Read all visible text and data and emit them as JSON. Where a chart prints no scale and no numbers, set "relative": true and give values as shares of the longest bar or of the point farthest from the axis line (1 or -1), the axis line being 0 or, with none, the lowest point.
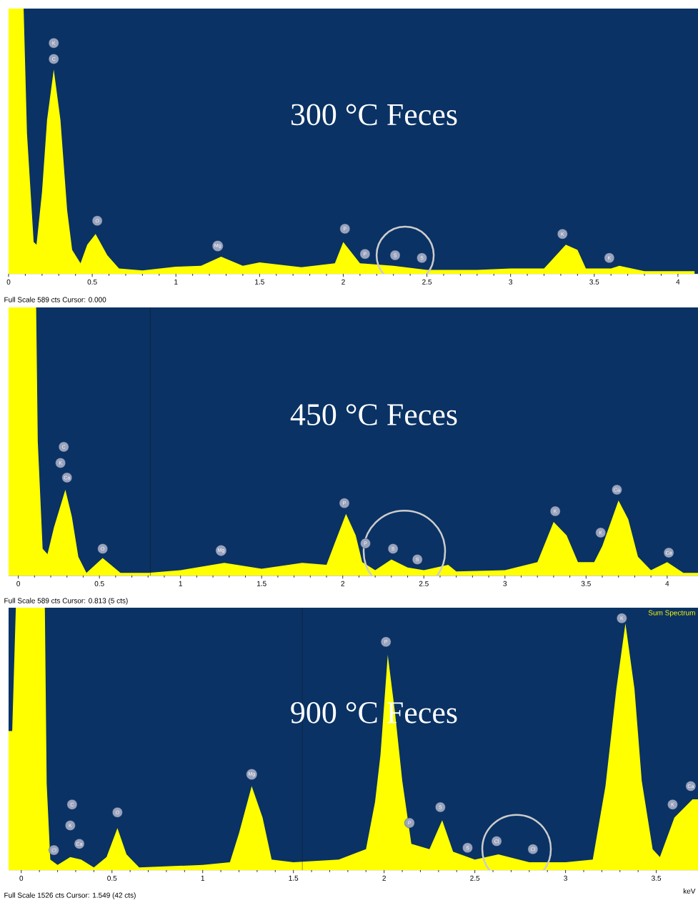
{
  "chart_data": [
    {
      "type": "area",
      "title": "300 °C Feces",
      "relative": true,
      "xlim": [
        0,
        4.12
      ],
      "xticks": [
        0,
        0.5,
        1,
        1.5,
        2,
        2.5,
        3,
        3.5,
        4
      ],
      "x": [
        0,
        0.09,
        0.11,
        0.15,
        0.167,
        0.2,
        0.23,
        0.27,
        0.31,
        0.35,
        0.38,
        0.43,
        0.47,
        0.52,
        0.59,
        0.66,
        0.8,
        1.0,
        1.15,
        1.27,
        1.4,
        1.5,
        1.75,
        1.95,
        2.0,
        2.1,
        2.3,
        2.5,
        2.8,
        3.0,
        3.2,
        3.33,
        3.4,
        3.45,
        3.6,
        3.65,
        3.8,
        4.1
      ],
      "series": [
        {
          "color": "#ffff00",
          "values": [
            1,
            1,
            0.53,
            0.12,
            0.11,
            0.31,
            0.58,
            0.77,
            0.58,
            0.24,
            0.09,
            0.04,
            0.11,
            0.15,
            0.07,
            0.02,
            0.013,
            0.027,
            0.03,
            0.065,
            0.03,
            0.043,
            0.025,
            0.04,
            0.12,
            0.04,
            0.03,
            0.015,
            0.015,
            0.02,
            0.02,
            0.11,
            0.09,
            0.02,
            0.02,
            0.03,
            0.01,
            0.01
          ]
        }
      ],
      "annotations": [
        {
          "text": "K",
          "x": 0.27,
          "y": 0.87
        },
        {
          "text": "C",
          "x": 0.27,
          "y": 0.81
        },
        {
          "text": "O",
          "x": 0.53,
          "y": 0.2
        },
        {
          "text": "Mg",
          "x": 1.25,
          "y": 0.105
        },
        {
          "text": "P",
          "x": 2.01,
          "y": 0.17
        },
        {
          "text": "P",
          "x": 2.13,
          "y": 0.075
        },
        {
          "text": "S",
          "x": 2.31,
          "y": 0.07
        },
        {
          "text": "S",
          "x": 2.47,
          "y": 0.06
        },
        {
          "text": "K",
          "x": 3.31,
          "y": 0.15
        },
        {
          "text": "K",
          "x": 3.59,
          "y": 0.06
        },
        "Full Scale 589 cts Cursor: 0.000"
      ]
    },
    {
      "type": "area",
      "title": "450 °C Feces",
      "relative": true,
      "xlim": [
        -0.06,
        4.19
      ],
      "xticks": [
        0,
        0.5,
        1,
        1.5,
        2,
        2.5,
        3,
        3.5,
        4
      ],
      "x": [
        -0.06,
        0.11,
        0.12,
        0.15,
        0.18,
        0.22,
        0.29,
        0.33,
        0.37,
        0.42,
        0.52,
        0.63,
        0.8,
        1.0,
        1.27,
        1.5,
        1.75,
        1.9,
        1.95,
        2.02,
        2.08,
        2.12,
        2.2,
        2.3,
        2.4,
        2.5,
        2.65,
        2.7,
        3.0,
        3.2,
        3.3,
        3.38,
        3.45,
        3.55,
        3.6,
        3.7,
        3.76,
        3.82,
        3.9,
        4.0,
        4.1,
        4.19
      ],
      "series": [
        {
          "color": "#ffff00",
          "values": [
            1,
            1,
            0.5,
            0.1,
            0.08,
            0.18,
            0.32,
            0.22,
            0.07,
            0.01,
            0.065,
            0.01,
            0.01,
            0.02,
            0.047,
            0.025,
            0.047,
            0.04,
            0.12,
            0.23,
            0.15,
            0.05,
            0.02,
            0.06,
            0.03,
            0.02,
            0.04,
            0.015,
            0.02,
            0.05,
            0.2,
            0.15,
            0.05,
            0.05,
            0.11,
            0.28,
            0.21,
            0.07,
            0.02,
            0.05,
            0.01,
            0.01
          ]
        }
      ],
      "ref_lines": [
        {
          "axis": "x",
          "value": 0.813,
          "color": "#1a1a1a"
        }
      ],
      "annotations": [
        {
          "text": "C",
          "x": 0.28,
          "y": 0.48
        },
        {
          "text": "K",
          "x": 0.26,
          "y": 0.42
        },
        {
          "text": "Ca",
          "x": 0.3,
          "y": 0.365
        },
        {
          "text": "O",
          "x": 0.52,
          "y": 0.1
        },
        {
          "text": "Mg",
          "x": 1.25,
          "y": 0.093
        },
        {
          "text": "P",
          "x": 2.01,
          "y": 0.27
        },
        {
          "text": "P",
          "x": 2.14,
          "y": 0.12
        },
        {
          "text": "S",
          "x": 2.31,
          "y": 0.1
        },
        {
          "text": "S",
          "x": 2.46,
          "y": 0.06
        },
        {
          "text": "K",
          "x": 3.31,
          "y": 0.24
        },
        {
          "text": "K",
          "x": 3.59,
          "y": 0.16
        },
        {
          "text": "Ca",
          "x": 3.69,
          "y": 0.32
        },
        {
          "text": "Ca",
          "x": 4.01,
          "y": 0.085
        },
        "Full Scale 589 cts Cursor: 0.813  (5 cts)"
      ]
    },
    {
      "type": "area",
      "title": "900 °C Feces",
      "xlabel": "keV",
      "relative": true,
      "xlim": [
        -0.07,
        3.73
      ],
      "xticks": [
        0,
        0.5,
        1,
        1.5,
        2,
        2.5,
        3,
        3.5
      ],
      "x": [
        -0.07,
        -0.05,
        -0.03,
        0.13,
        0.14,
        0.16,
        0.2,
        0.27,
        0.33,
        0.4,
        0.47,
        0.53,
        0.58,
        0.65,
        1.0,
        1.15,
        1.2,
        1.27,
        1.33,
        1.38,
        1.5,
        1.75,
        1.9,
        1.95,
        1.98,
        2.02,
        2.06,
        2.1,
        2.15,
        2.25,
        2.32,
        2.38,
        2.5,
        2.63,
        2.8,
        3.0,
        3.15,
        3.22,
        3.28,
        3.33,
        3.38,
        3.42,
        3.48,
        3.52,
        3.6,
        3.7,
        3.73
      ],
      "series": [
        {
          "name": "Sum Spectrum",
          "color": "#ffff00",
          "values": [
            0.53,
            0.53,
            1,
            1,
            0.33,
            0.04,
            0.02,
            0.05,
            0.04,
            0.01,
            0.05,
            0.16,
            0.06,
            0.01,
            0.02,
            0.03,
            0.14,
            0.32,
            0.2,
            0.04,
            0.03,
            0.04,
            0.08,
            0.26,
            0.44,
            0.82,
            0.6,
            0.34,
            0.1,
            0.08,
            0.19,
            0.07,
            0.04,
            0.06,
            0.03,
            0.03,
            0.04,
            0.32,
            0.69,
            0.94,
            0.69,
            0.34,
            0.08,
            0.05,
            0.2,
            0.27,
            0.27
          ]
        }
      ],
      "ref_lines": [
        {
          "axis": "x",
          "value": 1.549,
          "color": "#1a1a1a"
        }
      ],
      "annotations": [
        {
          "text": "Cl",
          "x": 0.18,
          "y": 0.076
        },
        {
          "text": "C",
          "x": 0.28,
          "y": 0.25
        },
        {
          "text": "K",
          "x": 0.27,
          "y": 0.17
        },
        {
          "text": "Ca",
          "x": 0.32,
          "y": 0.1
        },
        {
          "text": "O",
          "x": 0.53,
          "y": 0.22
        },
        {
          "text": "Mg",
          "x": 1.27,
          "y": 0.365
        },
        {
          "text": "P",
          "x": 2.01,
          "y": 0.87
        },
        {
          "text": "P",
          "x": 2.14,
          "y": 0.18
        },
        {
          "text": "S",
          "x": 2.31,
          "y": 0.24
        },
        {
          "text": "S",
          "x": 2.46,
          "y": 0.085
        },
        {
          "text": "Cl",
          "x": 2.62,
          "y": 0.11
        },
        {
          "text": "Cl",
          "x": 2.82,
          "y": 0.08
        },
        {
          "text": "K",
          "x": 3.31,
          "y": 0.96
        },
        {
          "text": "K",
          "x": 3.59,
          "y": 0.25
        },
        {
          "text": "Ca",
          "x": 3.69,
          "y": 0.32
        },
        "Full Scale 1526 cts Cursor: 1.549  (42 cts)"
      ]
    }
  ]
}
